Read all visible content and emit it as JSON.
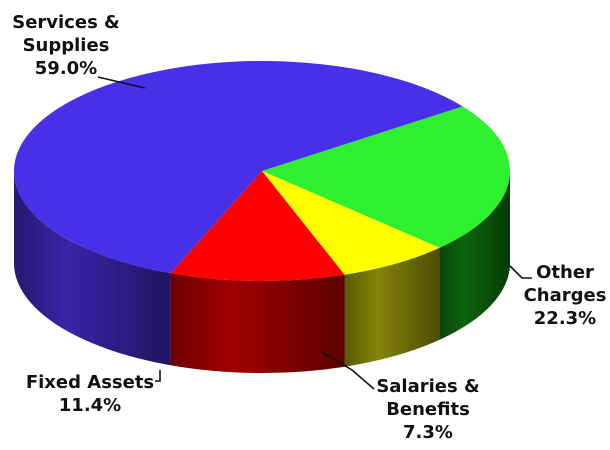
{
  "chart_data": {
    "type": "pie",
    "title": "",
    "slices": [
      {
        "label": "Services & Supplies",
        "value": 59.0,
        "value_label": "59.0%",
        "color": "#4a2fe8",
        "dark": "#3a26b0",
        "label_lines": [
          "Services &",
          "Supplies"
        ]
      },
      {
        "label": "Other Charges",
        "value": 22.3,
        "value_label": "22.3%",
        "color": "#2ef02e",
        "dark": "#0d6a0d",
        "label_lines": [
          "Other",
          "Charges"
        ]
      },
      {
        "label": "Salaries & Benefits",
        "value": 7.3,
        "value_label": "7.3%",
        "color": "#ffff00",
        "dark": "#8a8a08",
        "label_lines": [
          "Salaries &",
          "Benefits"
        ]
      },
      {
        "label": "Fixed Assets",
        "value": 11.4,
        "value_label": "11.4%",
        "color": "#ff0000",
        "dark": "#a80000",
        "label_lines": [
          "Fixed Assets"
        ]
      }
    ],
    "style": "3d-exploded-none"
  }
}
